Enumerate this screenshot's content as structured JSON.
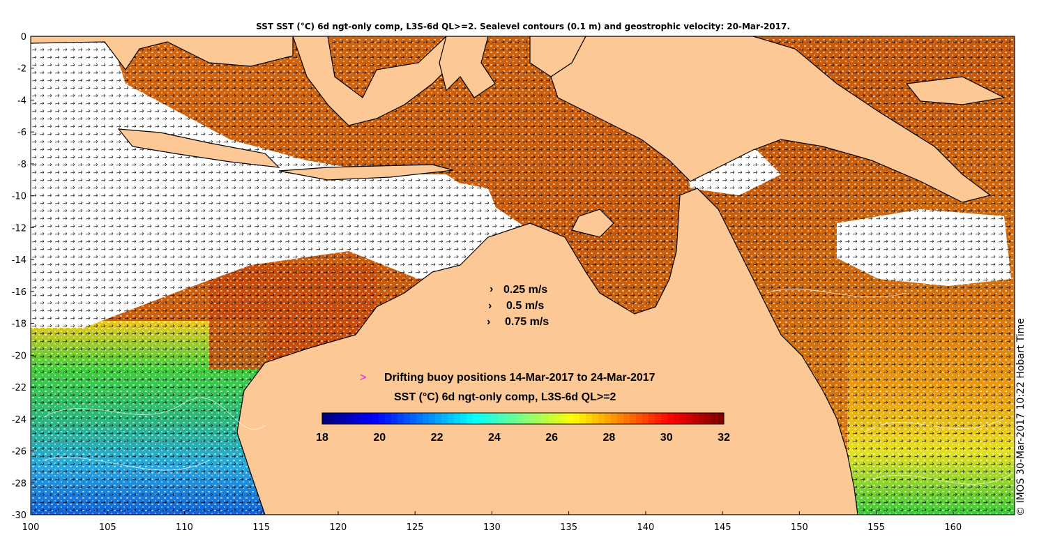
{
  "title": "SST SST (°C) 6d ngt-only comp, L3S-6d QL>=2. Sealevel contours (0.1 m) and geostrophic velocity: 20-Mar-2017.",
  "side_label": "© IMOS 30-Mar-2017 10:22 Hobart Time",
  "velocity_legend": [
    "0.25 m/s",
    "0.5 m/s",
    "0.75 m/s"
  ],
  "buoy_legend": {
    "marker": ">",
    "text": "Drifting buoy positions 14-Mar-2017 to 24-Mar-2017",
    "marker_color": "#ff00ff"
  },
  "colorbar": {
    "title": "SST (°C) 6d ngt-only comp, L3S-6d QL>=2",
    "min": 18,
    "max": 32,
    "ticks": [
      "18",
      "20",
      "22",
      "24",
      "26",
      "28",
      "30",
      "32"
    ],
    "colormap": "jet"
  },
  "axes": {
    "x_ticks": [
      "100",
      "105",
      "110",
      "115",
      "120",
      "125",
      "130",
      "135",
      "140",
      "145",
      "150",
      "155",
      "160"
    ],
    "y_ticks": [
      "0",
      "-2",
      "-4",
      "-6",
      "-8",
      "-10",
      "-12",
      "-14",
      "-16",
      "-18",
      "-20",
      "-22",
      "-24",
      "-26",
      "-28",
      "-30"
    ],
    "xlim": [
      100,
      164
    ],
    "ylim": [
      -30,
      0
    ]
  },
  "colors": {
    "land": "#fcc896",
    "coast": "#000000",
    "no_data": "#ffffff"
  }
}
